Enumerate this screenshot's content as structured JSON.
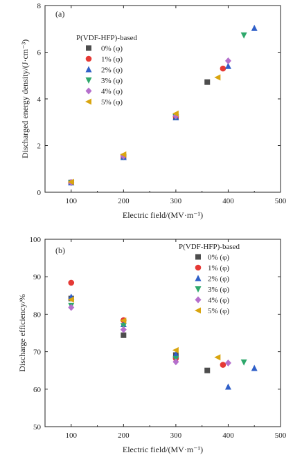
{
  "chart_data": [
    {
      "type": "scatter",
      "panel_label": "(a)",
      "legend_title": "P(VDF-HFP)-based",
      "legend_position": "top-left",
      "xlabel": "Electric field/(MV·m⁻¹)",
      "ylabel": "Discharged energy density/(J·cm⁻³)",
      "xlim": [
        50,
        500
      ],
      "ylim": [
        0,
        8
      ],
      "xticks": [
        "100",
        "200",
        "300",
        "400",
        "500"
      ],
      "yticks": [
        "0",
        "2",
        "4",
        "6",
        "8"
      ],
      "grid": false,
      "series": [
        {
          "name": "0% (φ)",
          "marker": "square",
          "color": "#4d4d4d",
          "x": [
            100,
            200,
            300,
            360
          ],
          "y": [
            0.42,
            1.52,
            3.22,
            4.72
          ]
        },
        {
          "name": "1% (φ)",
          "marker": "circle",
          "color": "#e53935",
          "x": [
            100,
            200,
            300,
            390
          ],
          "y": [
            0.42,
            1.55,
            3.24,
            5.3
          ]
        },
        {
          "name": "2% (φ)",
          "marker": "triangle-up",
          "color": "#2f5fc8",
          "x": [
            100,
            200,
            300,
            400,
            450
          ],
          "y": [
            0.41,
            1.5,
            3.2,
            5.4,
            7.03
          ]
        },
        {
          "name": "3% (φ)",
          "marker": "triangle-down",
          "color": "#2ea86b",
          "x": [
            100,
            200,
            300,
            430
          ],
          "y": [
            0.4,
            1.52,
            3.23,
            6.73
          ]
        },
        {
          "name": "4% (φ)",
          "marker": "diamond",
          "color": "#b56fcc",
          "x": [
            100,
            200,
            300,
            400
          ],
          "y": [
            0.42,
            1.55,
            3.27,
            5.63
          ]
        },
        {
          "name": "5% (φ)",
          "marker": "triangle-left",
          "color": "#d9a50f",
          "x": [
            100,
            200,
            300,
            380
          ],
          "y": [
            0.44,
            1.62,
            3.37,
            4.92
          ]
        }
      ]
    },
    {
      "type": "scatter",
      "panel_label": "(b)",
      "legend_title": "P(VDF-HFP)-based",
      "legend_position": "top-right",
      "xlabel": "Electric field/(MV·m⁻¹)",
      "ylabel": "Discharge efficiency/%",
      "xlim": [
        50,
        500
      ],
      "ylim": [
        50,
        100
      ],
      "xticks": [
        "100",
        "200",
        "300",
        "400",
        "500"
      ],
      "yticks": [
        "50",
        "60",
        "70",
        "80",
        "90",
        "100"
      ],
      "grid": false,
      "series": [
        {
          "name": "0% (φ)",
          "marker": "square",
          "color": "#4d4d4d",
          "x": [
            100,
            200,
            300,
            360
          ],
          "y": [
            84.2,
            74.4,
            69.1,
            65
          ]
        },
        {
          "name": "1% (φ)",
          "marker": "circle",
          "color": "#e53935",
          "x": [
            100,
            200,
            300,
            390
          ],
          "y": [
            88.4,
            78.4,
            68.2,
            66.5
          ]
        },
        {
          "name": "2% (φ)",
          "marker": "triangle-up",
          "color": "#2f5fc8",
          "x": [
            100,
            200,
            300,
            400,
            450
          ],
          "y": [
            84.6,
            77.3,
            69.2,
            60.6,
            65.6
          ]
        },
        {
          "name": "3% (φ)",
          "marker": "triangle-down",
          "color": "#2ea86b",
          "x": [
            100,
            200,
            300,
            430
          ],
          "y": [
            82.3,
            76.9,
            68.1,
            67.2
          ]
        },
        {
          "name": "4% (φ)",
          "marker": "diamond",
          "color": "#b56fcc",
          "x": [
            100,
            200,
            300,
            400
          ],
          "y": [
            81.8,
            75.9,
            67.3,
            67
          ]
        },
        {
          "name": "5% (φ)",
          "marker": "triangle-left",
          "color": "#d9a50f",
          "x": [
            100,
            200,
            300,
            380
          ],
          "y": [
            83.9,
            78.3,
            70.4,
            68.5
          ]
        }
      ]
    }
  ]
}
